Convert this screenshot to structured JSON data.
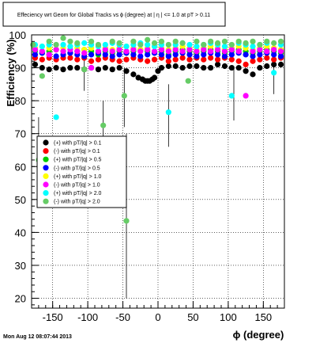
{
  "title": "Effeciency wrt Geom for Global Tracks vs ϕ (degree) at | η | <= 1.0 at pT > 0.11",
  "timestamp": "Mon Aug 12 08:07:44 2013",
  "chart_data": {
    "type": "scatter",
    "title": "Effeciency wrt Geom for Global Tracks vs ϕ (degree) at | η | <= 1.0 at pT > 0.11",
    "xlabel": "ϕ (degree)",
    "ylabel": "Efficiency (%)",
    "xlim": [
      -180,
      180
    ],
    "ylim": [
      17,
      100
    ],
    "xticks": [
      -150,
      -100,
      -50,
      0,
      50,
      100,
      150
    ],
    "yticks": [
      20,
      30,
      40,
      50,
      60,
      70,
      80,
      90,
      100
    ],
    "grid": true,
    "legend_position": "left-middle",
    "series": [
      {
        "name": "(+) with pT/|q| > 0.1",
        "color": "#000000",
        "x": [
          -175,
          -165,
          -155,
          -145,
          -135,
          -125,
          -115,
          -105,
          -95,
          -85,
          -75,
          -65,
          -55,
          -45,
          -35,
          -28,
          -22,
          -18,
          -15,
          -12,
          -8,
          -5,
          0,
          5,
          15,
          25,
          35,
          45,
          55,
          65,
          75,
          85,
          95,
          105,
          115,
          125,
          135,
          145,
          155,
          165,
          175
        ],
        "y": [
          91,
          90,
          89.5,
          90,
          89.5,
          90,
          90,
          89.5,
          90,
          89.5,
          90,
          89.5,
          90,
          89,
          88,
          87,
          86.5,
          86,
          86,
          86,
          86.5,
          87,
          89,
          90,
          90.5,
          90.5,
          90,
          90.5,
          90.5,
          90,
          90,
          91,
          90.5,
          90,
          90,
          89,
          88,
          90,
          90.5,
          91,
          91
        ]
      },
      {
        "name": "(-) with pT/|q| > 0.1",
        "color": "#ff0000",
        "x": [
          -175,
          -165,
          -155,
          -145,
          -135,
          -125,
          -115,
          -105,
          -95,
          -85,
          -75,
          -65,
          -55,
          -45,
          -35,
          -25,
          -15,
          -5,
          5,
          15,
          25,
          35,
          45,
          55,
          65,
          75,
          85,
          95,
          105,
          115,
          125,
          135,
          145,
          155,
          165,
          175
        ],
        "y": [
          93,
          92.5,
          93,
          92.5,
          93,
          93,
          92.5,
          93,
          92,
          92.5,
          93,
          92.5,
          92,
          92.5,
          93,
          92.5,
          92,
          92.5,
          93,
          92,
          92.5,
          93,
          92.5,
          93,
          92.5,
          93,
          92.5,
          93,
          92.5,
          92,
          91,
          92,
          92.5,
          93,
          92.5,
          93
        ]
      },
      {
        "name": "(+) with pT/|q| > 0.5",
        "color": "#00cc00",
        "x": [
          -175,
          -165,
          -155,
          -145,
          -135,
          -125,
          -115,
          -105,
          -95,
          -85,
          -75,
          -65,
          -55,
          -45,
          -35,
          -25,
          -15,
          -5,
          5,
          15,
          25,
          35,
          45,
          55,
          65,
          75,
          85,
          95,
          105,
          115,
          125,
          135,
          145,
          155,
          165,
          175
        ],
        "y": [
          95,
          94.5,
          95,
          95.5,
          95,
          94.5,
          95,
          95.5,
          95,
          94,
          95,
          94.5,
          95,
          94.5,
          95,
          95.5,
          95,
          94.5,
          95,
          94,
          95,
          95.5,
          95,
          94.5,
          95,
          95.5,
          95,
          94.5,
          95,
          95.5,
          95,
          94.5,
          95,
          95.5,
          95,
          94.5
        ]
      },
      {
        "name": "(-) with pT/|q| > 0.5",
        "color": "#0000ff",
        "x": [
          -175,
          -165,
          -155,
          -145,
          -135,
          -125,
          -115,
          -105,
          -95,
          -85,
          -75,
          -65,
          -55,
          -45,
          -35,
          -25,
          -15,
          -5,
          5,
          15,
          25,
          35,
          45,
          55,
          65,
          75,
          85,
          95,
          105,
          115,
          125,
          135,
          145,
          155,
          165,
          175
        ],
        "y": [
          94,
          94.5,
          94,
          93.5,
          94,
          94.5,
          94,
          93.5,
          94,
          94.5,
          94,
          93.5,
          94,
          94.5,
          94,
          93.5,
          94,
          94.5,
          94,
          93.5,
          94,
          94.5,
          94,
          93.5,
          94,
          94.5,
          94,
          93.5,
          94,
          94.5,
          94,
          93.5,
          94,
          94.5,
          94,
          93.5
        ]
      },
      {
        "name": "(+) with pT/|q| > 1.0",
        "color": "#ffff00",
        "x": [
          -175,
          -165,
          -155,
          -145,
          -135,
          -125,
          -115,
          -105,
          -95,
          -85,
          -75,
          -65,
          -55,
          -45,
          -35,
          -25,
          -15,
          -5,
          5,
          15,
          25,
          35,
          45,
          55,
          65,
          75,
          85,
          95,
          105,
          115,
          125,
          135,
          145,
          155,
          165,
          175
        ],
        "y": [
          96,
          96.5,
          96,
          95.5,
          96,
          96.5,
          96,
          95.5,
          96,
          96.5,
          96,
          95.5,
          96,
          96.5,
          96,
          95.5,
          96,
          96.5,
          96,
          95.5,
          96,
          96.5,
          96,
          95.5,
          96,
          96.5,
          96,
          95.5,
          96,
          96.5,
          96,
          95.5,
          96,
          96.5,
          96,
          95.5
        ]
      },
      {
        "name": "(-) with pT/|q| > 1.0",
        "color": "#ff00ff",
        "x": [
          -175,
          -165,
          -155,
          -145,
          -135,
          -125,
          -115,
          -105,
          -95,
          -85,
          -75,
          -65,
          -55,
          -45,
          -35,
          -25,
          -15,
          -5,
          5,
          15,
          25,
          35,
          45,
          55,
          65,
          75,
          85,
          95,
          105,
          115,
          125,
          135,
          145,
          155,
          165,
          175
        ],
        "y": [
          95.5,
          95,
          94,
          95.5,
          95,
          95.5,
          95,
          94.5,
          90,
          95,
          95.5,
          95,
          95.5,
          95,
          95.5,
          95,
          95.5,
          95,
          95.5,
          95,
          95.5,
          95,
          95.5,
          95,
          95.5,
          95,
          95.5,
          95,
          95.5,
          95,
          81.5,
          95,
          95.5,
          95,
          95.5,
          95
        ]
      },
      {
        "name": "(+) with pT/|q| > 2.0",
        "color": "#00ffff",
        "x": [
          -175,
          -165,
          -155,
          -145,
          -135,
          -125,
          -115,
          -105,
          -95,
          -85,
          -75,
          -65,
          -55,
          -45,
          -35,
          -25,
          -15,
          -5,
          5,
          15,
          25,
          35,
          45,
          55,
          65,
          75,
          85,
          95,
          105,
          115,
          125,
          135,
          145,
          155,
          165,
          175
        ],
        "y": [
          97,
          96.5,
          97,
          75,
          97,
          96.5,
          97,
          97.5,
          97,
          96.5,
          97,
          97.5,
          97,
          96.5,
          97,
          97.5,
          97,
          96.5,
          97,
          76.5,
          97,
          97.5,
          97,
          96.5,
          97,
          97.5,
          97,
          96.5,
          81.5,
          97.5,
          97,
          96.5,
          97,
          97.5,
          88.5,
          97
        ]
      },
      {
        "name": "(-) with pT/|q| > 2.0",
        "color": "#66cc66",
        "x": [
          -178,
          -170,
          -165,
          -155,
          -145,
          -135,
          -125,
          -115,
          -105,
          -95,
          -85,
          -78,
          -65,
          -55,
          -48,
          -45,
          -35,
          -25,
          -15,
          -5,
          5,
          15,
          25,
          35,
          43,
          55,
          65,
          75,
          85,
          95,
          105,
          115,
          125,
          135,
          145,
          155,
          165,
          175
        ],
        "y": [
          97,
          62,
          87.5,
          98,
          97,
          99,
          98,
          97.5,
          89.5,
          98,
          97,
          72.5,
          98,
          97.5,
          81.5,
          43.5,
          98,
          97,
          98.5,
          97.5,
          98,
          97,
          98,
          97.5,
          86,
          98,
          97,
          98,
          97.5,
          98,
          97,
          98,
          97.5,
          98,
          97,
          98,
          97.5,
          98
        ]
      }
    ]
  }
}
